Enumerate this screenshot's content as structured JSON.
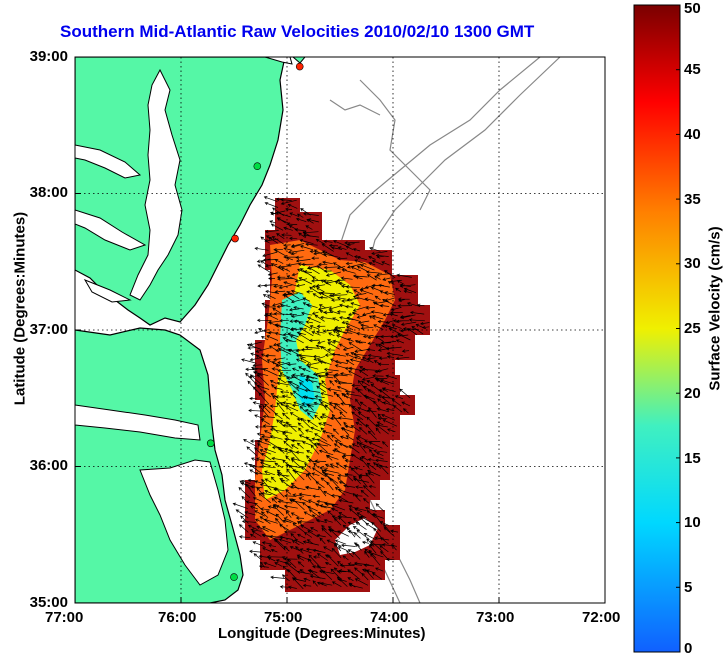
{
  "title": "Southern Mid-Atlantic Raw Velocities 2010/02/10 1300 GMT",
  "xlabel": "Longitude (Degrees:Minutes)",
  "ylabel": "Latitude (Degrees:Minutes)",
  "colorbar": {
    "title": "Surface Velocity (cm/s)",
    "ticks": [
      "0",
      "5",
      "10",
      "15",
      "20",
      "25",
      "30",
      "35",
      "40",
      "45",
      "50"
    ],
    "range": [
      0,
      50
    ],
    "colormap": [
      "#1060ff",
      "#00d8ff",
      "#40f0c0",
      "#f0f000",
      "#ff8000",
      "#ff0000",
      "#7a0000"
    ]
  },
  "x_ticks": [
    "77:00",
    "76:00",
    "75:00",
    "74:00",
    "73:00",
    "72:00"
  ],
  "y_ticks": [
    "39:00",
    "38:00",
    "37:00",
    "36:00",
    "35:00"
  ],
  "colors": {
    "land": "#55f7a6",
    "coast": "#000000",
    "bathymetry": "#888888",
    "grid": "#000000",
    "title": "#0000ee",
    "station_green": "#00dd44",
    "station_red": "#ff2200"
  },
  "grid": true,
  "stations": [
    {
      "lon": -74.88,
      "lat": 38.93,
      "color": "red"
    },
    {
      "lon": -75.28,
      "lat": 38.2,
      "color": "green"
    },
    {
      "lon": -75.49,
      "lat": 37.67,
      "color": "red"
    },
    {
      "lon": -75.72,
      "lat": 36.17,
      "color": "green"
    },
    {
      "lon": -75.5,
      "lat": 35.19,
      "color": "green"
    }
  ],
  "chart_data": {
    "type": "heatmap",
    "x_range": [
      -77,
      -72
    ],
    "y_range": [
      35,
      39
    ],
    "value_range": [
      0,
      50
    ]
  }
}
